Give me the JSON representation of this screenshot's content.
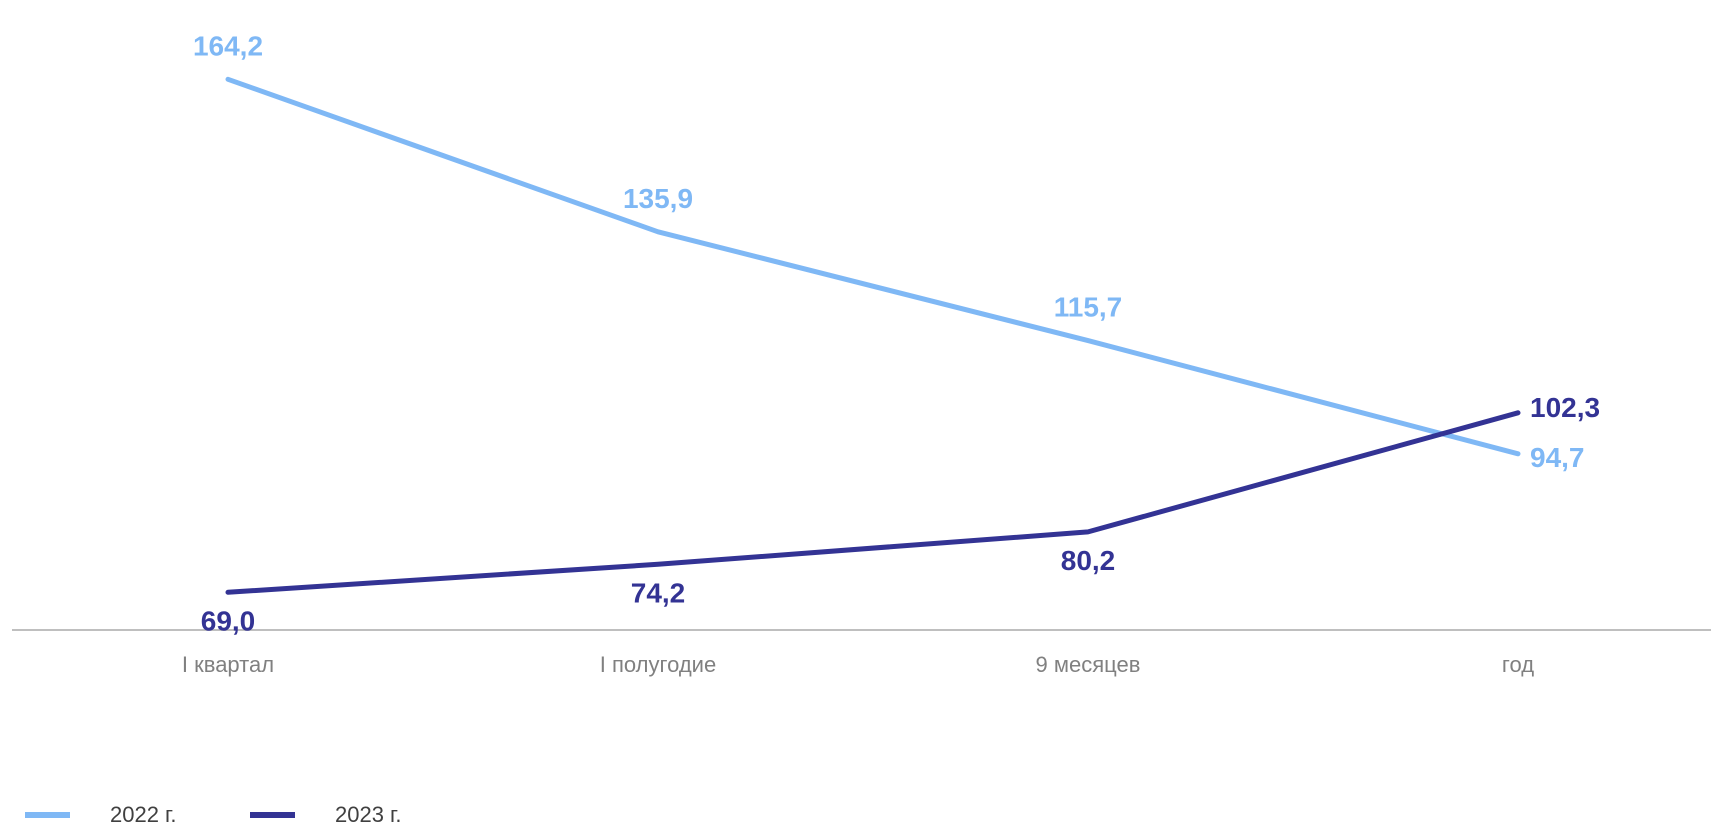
{
  "chart_data": {
    "type": "line",
    "categories": [
      "I квартал",
      "I полугодие",
      "9 месяцев",
      "год"
    ],
    "series": [
      {
        "name": "2022 г.",
        "values": [
          164.2,
          135.9,
          115.7,
          94.7
        ],
        "labels": [
          "164,2",
          "135,9",
          "115,7",
          "94,7"
        ],
        "color": "#7fb8f5"
      },
      {
        "name": "2023 г.",
        "values": [
          69.0,
          74.2,
          80.2,
          102.3
        ],
        "labels": [
          "69,0",
          "74,2",
          "80,2",
          "102,3"
        ],
        "color": "#333394"
      }
    ],
    "ylim": [
      62,
      170
    ],
    "grid": false,
    "legend_position": "bottom-left",
    "axis_color": "#bfbfbf"
  }
}
